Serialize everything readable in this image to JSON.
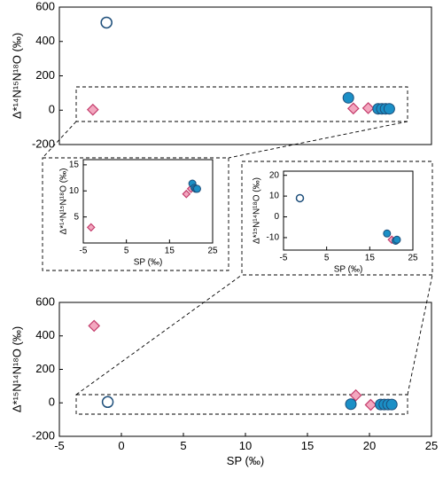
{
  "chart_data": [
    {
      "type": "scatter",
      "ylabel": "Δ*¹⁴N¹⁵N¹⁸O (‰)",
      "xlim": [
        -5,
        25
      ],
      "ylim": [
        -200,
        600
      ],
      "yticks": [
        -200,
        0,
        200,
        400,
        600
      ],
      "series": [
        {
          "marker": "open-circle",
          "color": "#1d4e7a",
          "x": [
            -1.2
          ],
          "values": [
            510
          ]
        },
        {
          "marker": "diamond",
          "color": "#f3a7bf",
          "x": [
            -2.3,
            18.7,
            19.9
          ],
          "values": [
            3,
            10,
            12
          ]
        },
        {
          "marker": "circle",
          "color": "#1b8fc6",
          "x": [
            18.3,
            20.7,
            21.0,
            21.3,
            21.6
          ],
          "values": [
            72,
            8,
            8,
            8,
            8
          ]
        }
      ]
    },
    {
      "type": "scatter",
      "ylabel": "Δ*¹⁴N¹⁵N¹⁸O (‰)",
      "xlabel": "SP (‰)",
      "xlim": [
        -5,
        25
      ],
      "xticks": [
        -5,
        5,
        15,
        25
      ],
      "ylim": [
        0,
        16
      ],
      "yticks": [
        5,
        10,
        15
      ],
      "series": [
        {
          "marker": "diamond",
          "color": "#f3a7bf",
          "x": [
            -3.2,
            18.9,
            20.0
          ],
          "values": [
            3,
            9.4,
            10.4
          ]
        },
        {
          "marker": "circle",
          "color": "#1b8fc6",
          "x": [
            20.3,
            20.8,
            21.1,
            21.4
          ],
          "values": [
            11.4,
            10.6,
            10.4,
            10.4
          ]
        }
      ]
    },
    {
      "type": "scatter",
      "ylabel": "Δ*¹⁵N¹⁴N¹⁸O (‰)",
      "xlabel": "SP (‰)",
      "xlim": [
        -5,
        25
      ],
      "xticks": [
        -5,
        5,
        15,
        25
      ],
      "ylim": [
        -16,
        22
      ],
      "yticks": [
        -10,
        0,
        10,
        20
      ],
      "series": [
        {
          "marker": "open-circle",
          "color": "#1d4e7a",
          "x": [
            -1.2
          ],
          "values": [
            9
          ]
        },
        {
          "marker": "diamond",
          "color": "#f3a7bf",
          "x": [
            20.1
          ],
          "values": [
            -11
          ]
        },
        {
          "marker": "circle",
          "color": "#1b8fc6",
          "x": [
            19.0,
            21.0,
            21.3
          ],
          "values": [
            -8,
            -11.5,
            -11
          ]
        }
      ]
    },
    {
      "type": "scatter",
      "ylabel": "Δ*¹⁵N¹⁴N¹⁸O (‰)",
      "xlabel": "SP (‰)",
      "xlim": [
        -5,
        25
      ],
      "xticks": [
        -5,
        0,
        5,
        10,
        15,
        20,
        25
      ],
      "ylim": [
        -200,
        600
      ],
      "yticks": [
        -200,
        0,
        200,
        400,
        600
      ],
      "series": [
        {
          "marker": "diamond",
          "color": "#f3a7bf",
          "x": [
            -2.2,
            18.9,
            20.1
          ],
          "values": [
            460,
            45,
            -12
          ]
        },
        {
          "marker": "open-circle",
          "color": "#1d4e7a",
          "x": [
            -1.1
          ],
          "values": [
            5
          ]
        },
        {
          "marker": "circle",
          "color": "#1b8fc6",
          "x": [
            18.5,
            20.9,
            21.2,
            21.5,
            21.8
          ],
          "values": [
            -8,
            -10,
            -10,
            -10,
            -10
          ]
        }
      ]
    }
  ]
}
